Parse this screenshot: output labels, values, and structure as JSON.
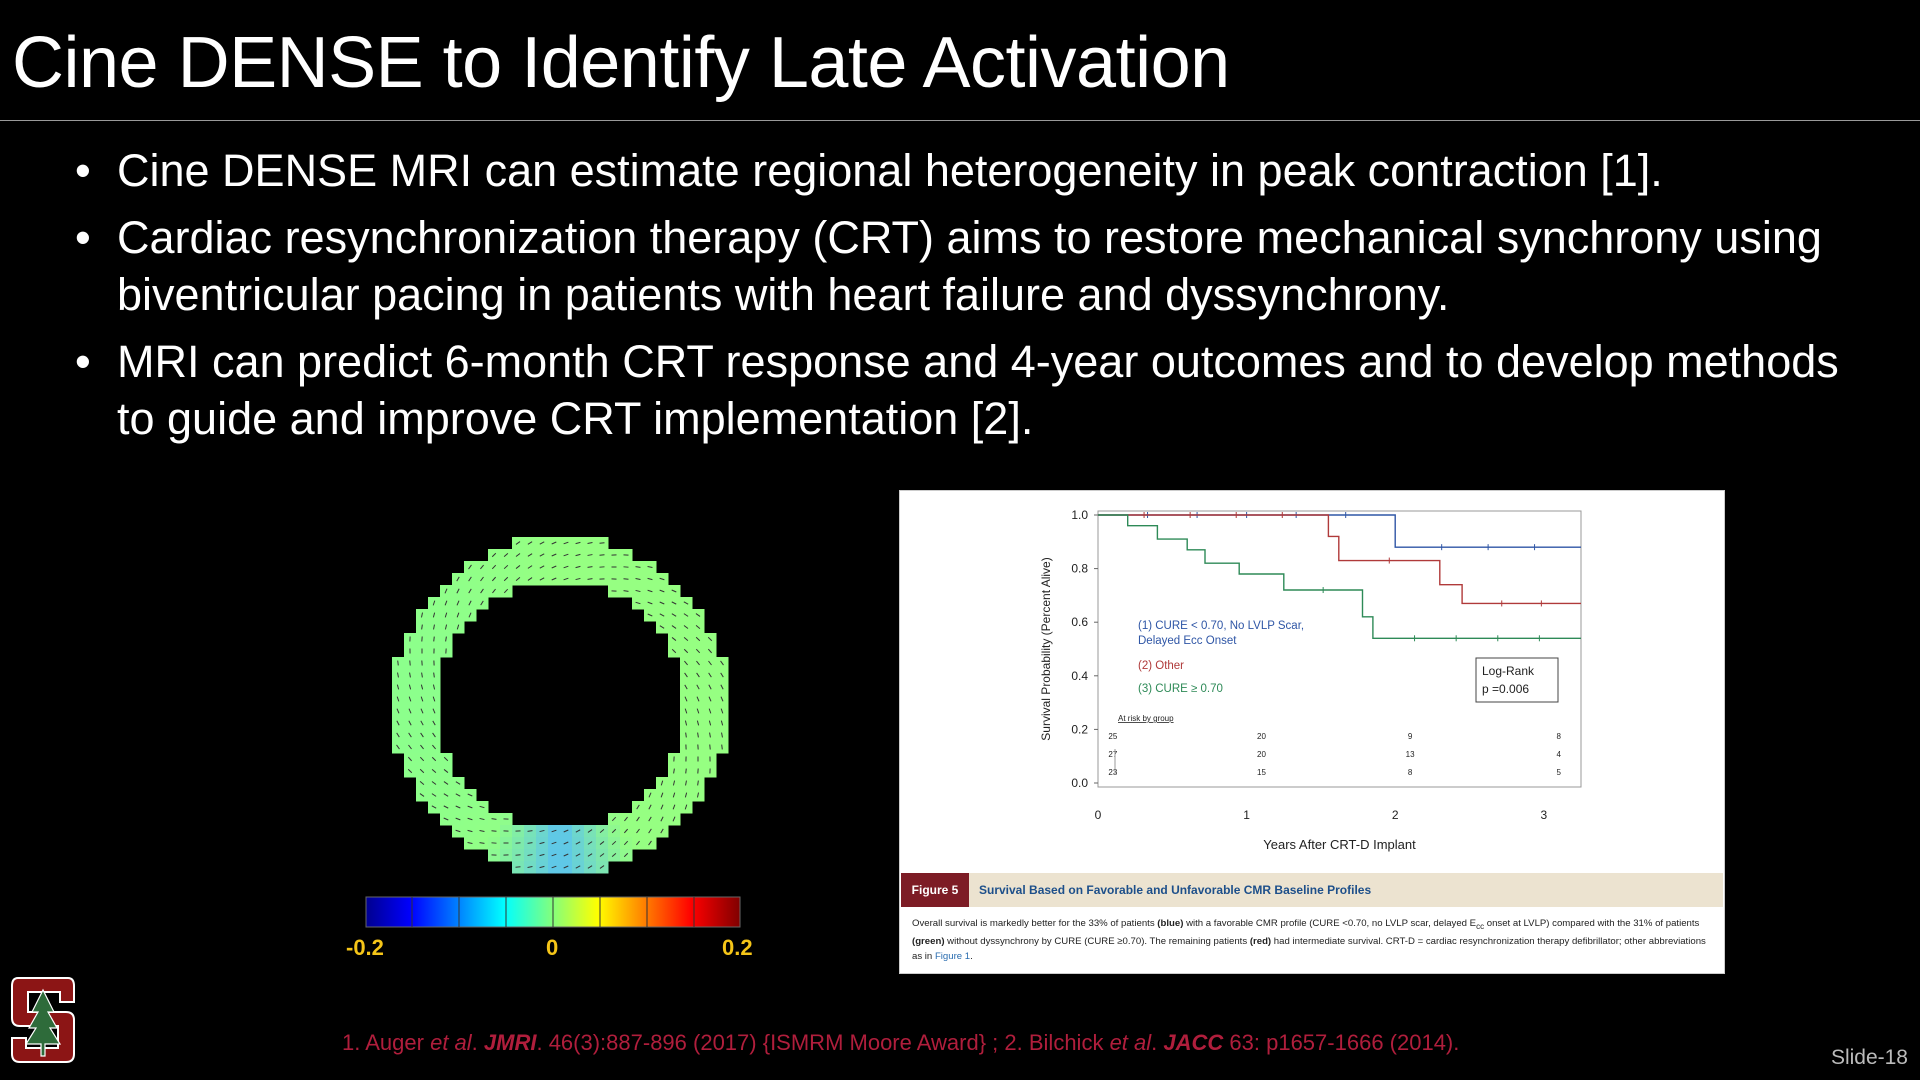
{
  "title": "Cine DENSE to Identify Late Activation",
  "bullets": [
    "Cine DENSE MRI can estimate regional heterogeneity in peak contraction [1].",
    "Cardiac resynchronization therapy (CRT) aims to restore mechanical synchrony using biventricular pacing in patients with heart failure and dyssynchrony.",
    "MRI can predict 6-month CRT response and 4-year outcomes and to develop methods to guide and improve CRT implementation [2]."
  ],
  "bullet_glyph": "•",
  "colorbar": {
    "min_label": "-0.2",
    "mid_label": "0",
    "max_label": "0.2",
    "min": -0.2,
    "max": 0.2
  },
  "chart_data": {
    "type": "line",
    "subtype": "kaplan-meier",
    "xlabel": "Years After CRT-D Implant",
    "ylabel": "Survival Probability (Percent Alive)",
    "xlim": [
      0,
      3.25
    ],
    "ylim": [
      0,
      1.0
    ],
    "x_ticks": [
      "0",
      "1",
      "2",
      "3"
    ],
    "y_ticks": [
      "0.0",
      "0.2",
      "0.4",
      "0.6",
      "0.8",
      "1.0"
    ],
    "series": [
      {
        "name": "(1) CURE < 0.70, No LVLP Scar, Delayed Ecc Onset",
        "name_line2": "Delayed Ecc Onset",
        "name_line1": "(1) CURE < 0.70, No LVLP Scar,",
        "color": "#2f56a6",
        "points": [
          [
            0,
            1.0
          ],
          [
            2.0,
            1.0
          ],
          [
            2.0,
            0.88
          ],
          [
            3.25,
            0.88
          ]
        ]
      },
      {
        "name": "(2) Other",
        "color": "#b03a3a",
        "points": [
          [
            0,
            1.0
          ],
          [
            1.55,
            1.0
          ],
          [
            1.55,
            0.92
          ],
          [
            1.62,
            0.92
          ],
          [
            1.62,
            0.83
          ],
          [
            2.3,
            0.83
          ],
          [
            2.3,
            0.74
          ],
          [
            2.45,
            0.74
          ],
          [
            2.45,
            0.67
          ],
          [
            3.25,
            0.67
          ]
        ]
      },
      {
        "name": "(3) CURE ≥ 0.70",
        "color": "#2e8a57",
        "points": [
          [
            0,
            1.0
          ],
          [
            0.2,
            1.0
          ],
          [
            0.2,
            0.96
          ],
          [
            0.4,
            0.96
          ],
          [
            0.4,
            0.91
          ],
          [
            0.6,
            0.91
          ],
          [
            0.6,
            0.87
          ],
          [
            0.72,
            0.87
          ],
          [
            0.72,
            0.82
          ],
          [
            0.95,
            0.82
          ],
          [
            0.95,
            0.78
          ],
          [
            1.25,
            0.78
          ],
          [
            1.25,
            0.72
          ],
          [
            1.78,
            0.72
          ],
          [
            1.78,
            0.62
          ],
          [
            1.85,
            0.62
          ],
          [
            1.85,
            0.54
          ],
          [
            3.25,
            0.54
          ]
        ]
      }
    ],
    "legend_box": {
      "line1": "Log-Rank",
      "line2": "p =0.006"
    },
    "at_risk": {
      "title": "At risk by group",
      "rows": [
        [
          "25",
          "20",
          "9",
          "8"
        ],
        [
          "27",
          "20",
          "13",
          "4"
        ],
        [
          "23",
          "15",
          "8",
          "5"
        ]
      ]
    }
  },
  "caption": {
    "figure_label": "Figure 5",
    "title": "Survival Based on Favorable and Unfavorable CMR Baseline Profiles",
    "text_parts": [
      {
        "t": "Overall survival is markedly better for the 33% of patients ",
        "b": false
      },
      {
        "t": "(blue)",
        "b": true
      },
      {
        "t": " with a favorable CMR profile (CURE <0.70, no LVLP scar, delayed E",
        "b": false
      },
      {
        "t": "cc",
        "b": false,
        "sub": true
      },
      {
        "t": " onset at LVLP) compared with the 31% of patients ",
        "b": false
      },
      {
        "t": "(green)",
        "b": true
      },
      {
        "t": " without dyssynchrony by CURE (CURE ≥0.70). The remaining patients ",
        "b": false
      },
      {
        "t": "(red)",
        "b": true
      },
      {
        "t": " had intermediate survival. CRT-D = cardiac resynchronization therapy defibrillator; other abbreviations as in ",
        "b": false
      },
      {
        "t": "Figure 1",
        "b": false,
        "link": true
      },
      {
        "t": ".",
        "b": false
      }
    ]
  },
  "references": {
    "r1_a": "1. Auger ",
    "r1_etal": "et al",
    "r1_b": ". ",
    "r1_journal": "JMRI",
    "r1_c": ". 46(3):887-896 (2017) {ISMRM Moore Award} ; 2. Bilchick ",
    "r2_etal": "et al",
    "r2_b": ". ",
    "r2_journal": "JACC",
    "r2_c": " 63: p1657-1666 (2014)."
  },
  "slide_number": "Slide-18",
  "colors": {
    "accent_red": "#b01e3c",
    "colorbar_label": "#f5c518",
    "stanford_red": "#8c1515"
  }
}
